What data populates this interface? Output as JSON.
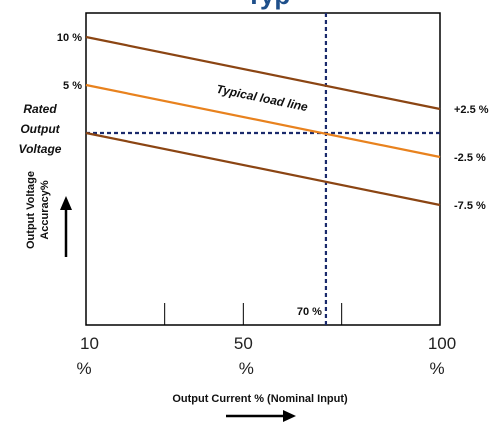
{
  "title_fragment": "Typ",
  "colors": {
    "load_line": "#e8821e",
    "limit_line": "#8b4513",
    "marker": "#1a2a6c",
    "frame": "#000000"
  },
  "chart_data": {
    "type": "line",
    "title": "",
    "xlabel": "Output Current % (Nominal Input)",
    "ylabel_line1": "Output Voltage",
    "ylabel_line2": "Accuracy%",
    "xlim": [
      10,
      100
    ],
    "ylim": [
      -20,
      12.5
    ],
    "x_ticks": [
      {
        "value": 10,
        "num": "10",
        "unit": "%"
      },
      {
        "value": 50,
        "num": "50",
        "unit": "%"
      },
      {
        "value": 100,
        "num": "100",
        "unit": "%"
      }
    ],
    "minor_ticks": [
      30,
      50,
      75
    ],
    "left_labels": [
      {
        "text": "10 %",
        "y": 10
      },
      {
        "text": "5 %",
        "y": 5
      }
    ],
    "rated_label": [
      "Rated",
      "Output",
      "Voltage"
    ],
    "right_labels": [
      {
        "text": "+2.5 %",
        "y": 2.5
      },
      {
        "text": "-2.5 %",
        "y": -2.5
      },
      {
        "text": "-7.5 %",
        "y": -7.5
      }
    ],
    "series": [
      {
        "key": "upper",
        "x": [
          10,
          100
        ],
        "y": [
          10,
          2.5
        ]
      },
      {
        "key": "typical",
        "x": [
          10,
          100
        ],
        "y": [
          5,
          -2.5
        ]
      },
      {
        "key": "lower",
        "x": [
          10,
          100
        ],
        "y": [
          0,
          -7.5
        ]
      }
    ],
    "annotation": {
      "text": "Typical load line",
      "x": 43,
      "y": 4.2
    },
    "reference_lines": {
      "horizontal_y": 0,
      "vertical_x": 71,
      "vertical_label": "70 %"
    }
  }
}
